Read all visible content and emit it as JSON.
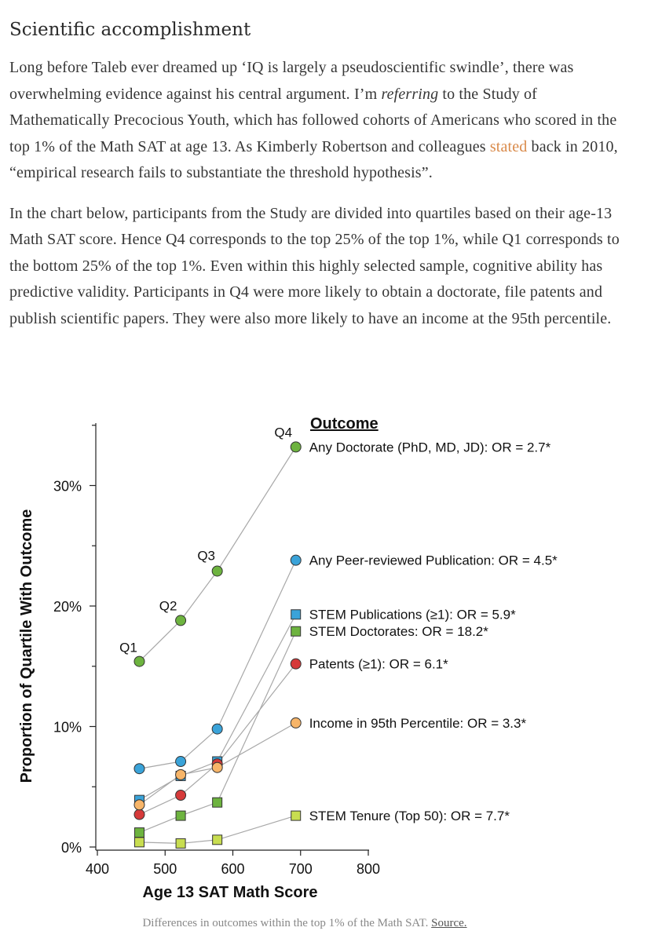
{
  "article": {
    "heading": "Scientific accomplishment",
    "p1": {
      "part1": "Long before Taleb ever dreamed up ‘IQ is largely a pseudoscientific swindle’, there was overwhelming evidence against his central argument. I’m ",
      "emph": "referring",
      "part2": " to the Study of Mathematically Precocious Youth, which has followed cohorts of Americans who scored in the top 1% of the Math SAT at age 13. As Kimberly Robertson and colleagues ",
      "link": "stated",
      "part3": " back in 2010, “empirical research fails to substantiate the threshold hypothesis”."
    },
    "p2": "In the chart below, participants from the Study are divided into quartiles based on their age-13 Math SAT score. Hence Q4 corresponds to the top 25% of the top 1%, while Q1 corresponds to the bottom 25% of the top 1%. Even within this highly selected sample, cognitive ability has predictive validity. Participants in Q4 were more likely to obtain a doctorate, file patents and publish scientific papers. They were also more likely to have an income at the 95th percentile.",
    "caption_text": "Differences in outcomes within the top 1% of the Math SAT. ",
    "caption_link": "Source."
  },
  "colors": {
    "link": "#d98a4a",
    "dark_green": "#5aa13a",
    "blue": "#3aa3d9",
    "red": "#d63a3a",
    "orange": "#f7b569",
    "light_green": "#c2dc4a"
  },
  "chart_data": {
    "type": "scatter",
    "xlabel": "Age 13 SAT Math Score",
    "ylabel": "Proportion of Quartile With Outcome",
    "xlim": [
      400,
      800
    ],
    "ylim": [
      0,
      35
    ],
    "x_ticks": [
      "400",
      "500",
      "600",
      "700",
      "800"
    ],
    "y_ticks": [
      {
        "v": 0,
        "label": "0%"
      },
      {
        "v": 10,
        "label": "10%"
      },
      {
        "v": 20,
        "label": "20%"
      },
      {
        "v": 30,
        "label": "30%"
      }
    ],
    "legend_title": "Outcome",
    "quartile_labels": [
      "Q1",
      "Q2",
      "Q3",
      "Q4"
    ],
    "x": [
      462,
      523,
      577,
      693
    ],
    "series": [
      {
        "name": "Any Doctorate  (PhD, MD, JD): OR = 2.7*",
        "marker": "circle",
        "color": "#6db33f",
        "values": [
          15.4,
          18.8,
          22.9,
          33.2
        ]
      },
      {
        "name": "Any Peer-reviewed Publication: OR = 4.5*",
        "marker": "circle",
        "color": "#3aa3d9",
        "values": [
          6.5,
          7.1,
          9.8,
          23.8
        ]
      },
      {
        "name": "STEM Publications (≥1): OR = 5.9*",
        "marker": "square",
        "color": "#3aa3d9",
        "values": [
          3.9,
          5.9,
          7.1,
          19.3
        ]
      },
      {
        "name": "STEM Doctorates: OR = 18.2*",
        "marker": "square",
        "color": "#6db33f",
        "values": [
          1.2,
          2.6,
          3.7,
          17.9
        ]
      },
      {
        "name": "Patents (≥1): OR = 6.1*",
        "marker": "circle",
        "color": "#d63a3a",
        "values": [
          2.7,
          4.3,
          6.9,
          15.2
        ]
      },
      {
        "name": "Income in 95th Percentile: OR = 3.3*",
        "marker": "circle",
        "color": "#f7b569",
        "values": [
          3.5,
          6.0,
          6.6,
          10.3
        ]
      },
      {
        "name": "STEM Tenure (Top 50): OR = 7.7*",
        "marker": "square",
        "color": "#c8dd50",
        "values": [
          0.4,
          0.3,
          0.6,
          2.6
        ]
      }
    ]
  }
}
